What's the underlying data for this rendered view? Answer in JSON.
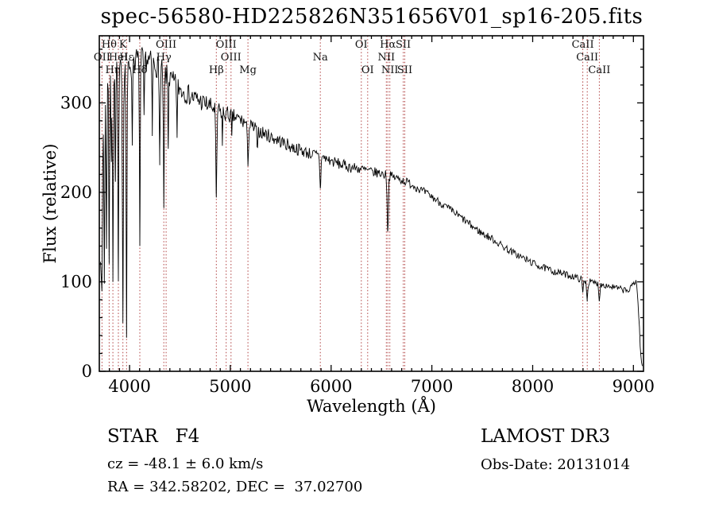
{
  "figure": {
    "title": "spec-56580-HD225826N351656V01_sp16-205.fits",
    "xlabel": "Wavelength (Å)",
    "ylabel": "Flux (relative)",
    "annotations": {
      "class_label": "STAR   F4",
      "survey": "LAMOST DR3",
      "cz": "cz = -48.1 ± 6.0 km/s",
      "obs_date": "Obs-Date: 20131014",
      "coords": "RA = 342.58202, DEC =  37.02700"
    }
  },
  "chart_data": {
    "type": "line",
    "title": "spec-56580-HD225826N351656V01_sp16-205.fits",
    "xlabel": "Wavelength (Å)",
    "ylabel": "Flux (relative)",
    "xlim": [
      3700,
      9100
    ],
    "ylim": [
      0,
      375
    ],
    "xticks": [
      4000,
      5000,
      6000,
      7000,
      8000,
      9000
    ],
    "yticks": [
      0,
      100,
      200,
      300
    ],
    "legend": "off",
    "grid": "off",
    "series_name": "flux",
    "line_color": "#000000",
    "marker_line_color": "#b04040",
    "continuum": [
      [
        3726,
        245
      ],
      [
        3760,
        300
      ],
      [
        3800,
        330
      ],
      [
        3860,
        335
      ],
      [
        3920,
        337
      ],
      [
        3980,
        340
      ],
      [
        4040,
        348
      ],
      [
        4100,
        350
      ],
      [
        4160,
        349
      ],
      [
        4240,
        344
      ],
      [
        4320,
        336
      ],
      [
        4400,
        326
      ],
      [
        4500,
        316
      ],
      [
        4600,
        308
      ],
      [
        4700,
        302
      ],
      [
        4800,
        296
      ],
      [
        4900,
        290
      ],
      [
        5000,
        286
      ],
      [
        5100,
        281
      ],
      [
        5200,
        274
      ],
      [
        5300,
        268
      ],
      [
        5400,
        262
      ],
      [
        5500,
        257
      ],
      [
        5600,
        251
      ],
      [
        5700,
        247
      ],
      [
        5800,
        243
      ],
      [
        5900,
        240
      ],
      [
        6000,
        235
      ],
      [
        6100,
        231
      ],
      [
        6200,
        228
      ],
      [
        6300,
        226
      ],
      [
        6400,
        223
      ],
      [
        6500,
        221
      ],
      [
        6600,
        218
      ],
      [
        6700,
        214
      ],
      [
        6800,
        209
      ],
      [
        6900,
        202
      ],
      [
        7000,
        195
      ],
      [
        7100,
        187
      ],
      [
        7200,
        179
      ],
      [
        7300,
        171
      ],
      [
        7400,
        162
      ],
      [
        7500,
        154
      ],
      [
        7600,
        148
      ],
      [
        7700,
        140
      ],
      [
        7800,
        133
      ],
      [
        7900,
        127
      ],
      [
        8000,
        121
      ],
      [
        8100,
        116
      ],
      [
        8200,
        112
      ],
      [
        8300,
        109
      ],
      [
        8400,
        106
      ],
      [
        8500,
        102
      ],
      [
        8600,
        99
      ],
      [
        8700,
        97
      ],
      [
        8800,
        94
      ],
      [
        8900,
        91
      ],
      [
        8960,
        90
      ],
      [
        9000,
        99
      ],
      [
        9030,
        101
      ],
      [
        9055,
        60
      ],
      [
        9075,
        12
      ],
      [
        9090,
        6
      ]
    ],
    "absorption_lines": [
      {
        "wl": 3712,
        "depth": 110,
        "width": 5
      },
      {
        "wl": 3727,
        "depth": 150,
        "width": 5
      },
      {
        "wl": 3750,
        "depth": 185,
        "width": 5
      },
      {
        "wl": 3771,
        "depth": 165,
        "width": 5
      },
      {
        "wl": 3798,
        "depth": 205,
        "width": 5
      },
      {
        "wl": 3820,
        "depth": 110,
        "width": 4
      },
      {
        "wl": 3835,
        "depth": 225,
        "width": 5
      },
      {
        "wl": 3860,
        "depth": 130,
        "width": 4
      },
      {
        "wl": 3889,
        "depth": 240,
        "width": 5
      },
      {
        "wl": 3934,
        "depth": 280,
        "width": 6
      },
      {
        "wl": 3970,
        "depth": 300,
        "width": 6
      },
      {
        "wl": 4026,
        "depth": 95,
        "width": 4
      },
      {
        "wl": 4102,
        "depth": 200,
        "width": 6
      },
      {
        "wl": 4144,
        "depth": 75,
        "width": 4
      },
      {
        "wl": 4226,
        "depth": 80,
        "width": 4
      },
      {
        "wl": 4300,
        "depth": 95,
        "width": 7
      },
      {
        "wl": 4340,
        "depth": 155,
        "width": 6
      },
      {
        "wl": 4383,
        "depth": 75,
        "width": 4
      },
      {
        "wl": 4472,
        "depth": 60,
        "width": 4
      },
      {
        "wl": 4861,
        "depth": 105,
        "width": 7
      },
      {
        "wl": 4921,
        "depth": 35,
        "width": 4
      },
      {
        "wl": 5015,
        "depth": 28,
        "width": 4
      },
      {
        "wl": 5175,
        "depth": 40,
        "width": 9
      },
      {
        "wl": 5270,
        "depth": 26,
        "width": 6
      },
      {
        "wl": 5893,
        "depth": 38,
        "width": 6
      },
      {
        "wl": 6563,
        "depth": 64,
        "width": 8
      },
      {
        "wl": 8498,
        "depth": 14,
        "width": 7
      },
      {
        "wl": 8542,
        "depth": 20,
        "width": 8
      },
      {
        "wl": 8662,
        "depth": 17,
        "width": 8
      }
    ],
    "noise": {
      "seed": 7
    },
    "spectral_lines": [
      {
        "label": "OII",
        "wl": 3727,
        "row": 1
      },
      {
        "label": "Hθ",
        "wl": 3798,
        "row": 0
      },
      {
        "label": "Hη",
        "wl": 3835,
        "row": 2
      },
      {
        "label": "HeI",
        "wl": 3889,
        "row": 1
      },
      {
        "label": "K",
        "wl": 3934,
        "row": 0
      },
      {
        "label": "Hε",
        "wl": 3970,
        "row": 1
      },
      {
        "label": "Hδ",
        "wl": 4102,
        "row": 2
      },
      {
        "label": "Hγ",
        "wl": 4340,
        "row": 1
      },
      {
        "label": "OIII",
        "wl": 4363,
        "row": 0
      },
      {
        "label": "Hβ",
        "wl": 4861,
        "row": 2
      },
      {
        "label": "OIII",
        "wl": 4959,
        "row": 0
      },
      {
        "label": "OIII",
        "wl": 5007,
        "row": 1
      },
      {
        "label": "Mg",
        "wl": 5175,
        "row": 2
      },
      {
        "label": "Na",
        "wl": 5893,
        "row": 1
      },
      {
        "label": "OI",
        "wl": 6300,
        "row": 0
      },
      {
        "label": "OI",
        "wl": 6363,
        "row": 2
      },
      {
        "label": "NII",
        "wl": 6548,
        "row": 1
      },
      {
        "label": "Hα",
        "wl": 6563,
        "row": 0
      },
      {
        "label": "NII",
        "wl": 6583,
        "row": 2
      },
      {
        "label": "SII",
        "wl": 6716,
        "row": 0
      },
      {
        "label": "SII",
        "wl": 6731,
        "row": 2
      },
      {
        "label": "CaII",
        "wl": 8498,
        "row": 0
      },
      {
        "label": "CaII",
        "wl": 8542,
        "row": 1
      },
      {
        "label": "CaII",
        "wl": 8662,
        "row": 2
      }
    ]
  }
}
